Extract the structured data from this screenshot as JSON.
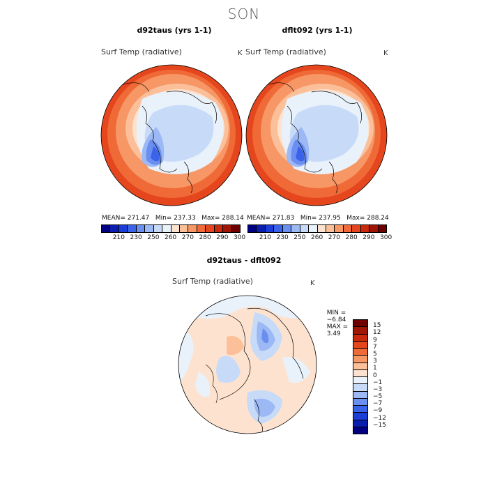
{
  "season": "SON",
  "panels": [
    {
      "title": "d92taus (yrs 1-1)",
      "variable": "Surf Temp (radiative)",
      "unit": "K",
      "stats": "MEAN= 271.47   Min= 237.33   Max= 288.14"
    },
    {
      "title": "dflt092 (yrs 1-1)",
      "variable": "Surf Temp (radiative)",
      "unit": "K",
      "stats": "MEAN= 271.83   Min= 237.95   Max= 288.24"
    }
  ],
  "abs_colorbar": {
    "labels": [
      "210",
      "230",
      "250",
      "260",
      "270",
      "280",
      "290",
      "300"
    ],
    "colors": [
      "#000080",
      "#0a1fb0",
      "#1d3ed6",
      "#3b63ea",
      "#6b8ff0",
      "#9cb8f5",
      "#c7dbf8",
      "#e9f2fb",
      "#fde3cf",
      "#fbc09a",
      "#f69765",
      "#ef6a37",
      "#e5461d",
      "#c92a0d",
      "#9f1506",
      "#6e0000"
    ]
  },
  "diff_panel": {
    "title": "d92taus - dflt092",
    "variable": "Surf Temp (radiative)",
    "unit": "K",
    "min_label": "MIN =",
    "min_value": "−6.84",
    "max_label": "MAX =",
    "max_value": "3.49"
  },
  "diff_colorbar": {
    "labels": [
      "15",
      "12",
      "9",
      "7",
      "5",
      "3",
      "1",
      "0",
      "−1",
      "−3",
      "−5",
      "−7",
      "−9",
      "−12",
      "−15"
    ],
    "colors": [
      "#6e0000",
      "#9f1506",
      "#c92a0d",
      "#e5461d",
      "#ef6a37",
      "#f69765",
      "#fbc09a",
      "#fde3cf",
      "#e9f2fb",
      "#c7dbf8",
      "#9cb8f5",
      "#6b8ff0",
      "#3b63ea",
      "#1d3ed6",
      "#0a1fb0",
      "#000080"
    ]
  }
}
